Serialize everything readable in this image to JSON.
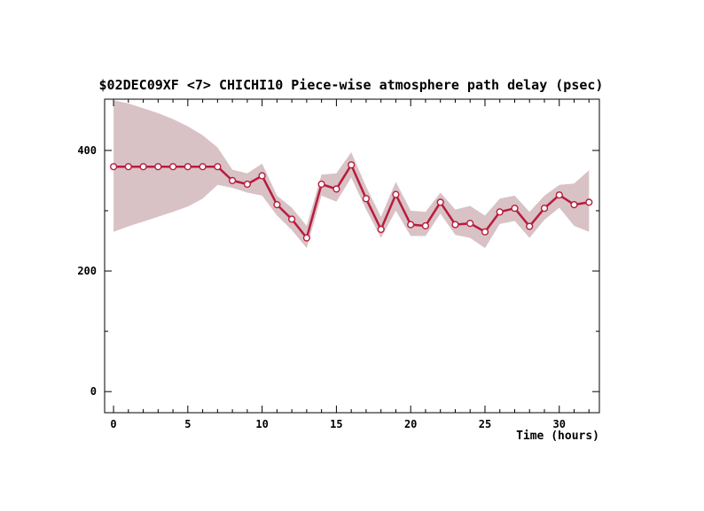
{
  "chart_data": {
    "type": "line",
    "title": "$02DEC09XF <7>  CHICHI10  Piece-wise atmosphere path delay (psec)",
    "xlabel": "Time (hours)",
    "ylabel": "",
    "xlim": [
      -0.6,
      32.7
    ],
    "ylim": [
      -35,
      485
    ],
    "xticks": [
      0,
      5,
      10,
      15,
      20,
      25,
      30
    ],
    "yticks": [
      0,
      200,
      400
    ],
    "grid": false,
    "colors": {
      "line": "#b81c3c",
      "band": "#d8c2c6",
      "marker_fill": "#ffffff"
    },
    "series": [
      {
        "x": [
          0,
          1,
          2,
          3,
          4,
          5,
          6,
          7,
          8,
          9,
          10,
          11,
          12,
          13,
          14,
          15,
          16,
          17,
          18,
          19,
          20,
          21,
          22,
          23,
          24,
          25,
          26,
          27,
          28,
          29,
          30,
          31,
          32
        ],
        "y": [
          373,
          373,
          373,
          373,
          373,
          373,
          373,
          373,
          350,
          344,
          358,
          310,
          286,
          255,
          344,
          336,
          376,
          320,
          269,
          327,
          277,
          275,
          314,
          277,
          279,
          265,
          298,
          304,
          274,
          304,
          326,
          310,
          314
        ],
        "upper": [
          483,
          478,
          470,
          462,
          452,
          440,
          425,
          405,
          368,
          362,
          378,
          325,
          305,
          275,
          360,
          362,
          397,
          340,
          290,
          348,
          300,
          298,
          330,
          302,
          308,
          292,
          320,
          325,
          298,
          325,
          343,
          345,
          367
        ],
        "lower": [
          265,
          274,
          282,
          290,
          298,
          307,
          320,
          343,
          338,
          330,
          325,
          292,
          268,
          238,
          325,
          315,
          355,
          302,
          255,
          300,
          258,
          258,
          295,
          260,
          255,
          238,
          278,
          283,
          255,
          285,
          305,
          275,
          265
        ]
      }
    ]
  }
}
